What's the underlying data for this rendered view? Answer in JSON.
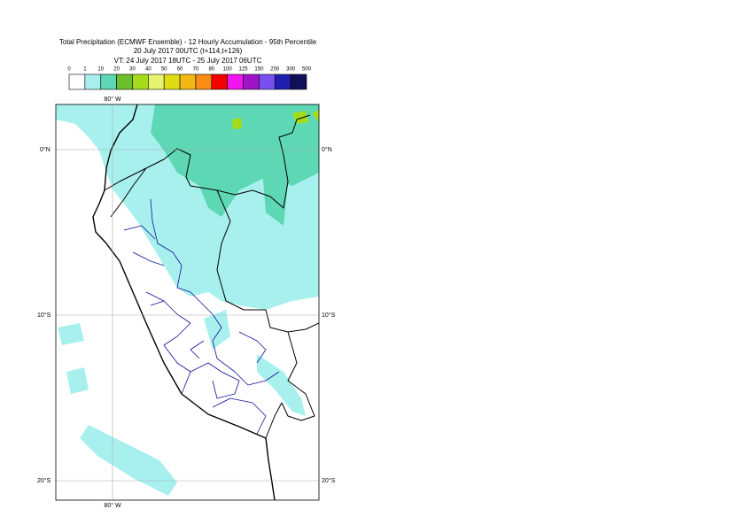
{
  "header": {
    "title": [
      "Total Precipitation (ECMWF Ensemble) - 12 Hourly Accumulation - 95th Percentile",
      "20 July 2017 00UTC (t+114,t+126)",
      "VT: 24 July 2017 18UTC - 25 July 2017 06UTC"
    ]
  },
  "legend": {
    "labels": [
      "0",
      "1",
      "10",
      "20",
      "30",
      "40",
      "50",
      "60",
      "70",
      "80",
      "100",
      "125",
      "150",
      "200",
      "300",
      "500"
    ],
    "colors": [
      "#ffffff",
      "#a8f0ee",
      "#5ed8b4",
      "#6cbf2c",
      "#a4dc1c",
      "#e4f46c",
      "#e0dc14",
      "#f4b814",
      "#f88c14",
      "#f40000",
      "#f014f0",
      "#a014c8",
      "#7850f0",
      "#2020b0",
      "#101058"
    ]
  },
  "map": {
    "lon_labels": [
      "80° W"
    ],
    "lat_labels": [
      "0°N",
      "10°S",
      "20°S"
    ]
  }
}
